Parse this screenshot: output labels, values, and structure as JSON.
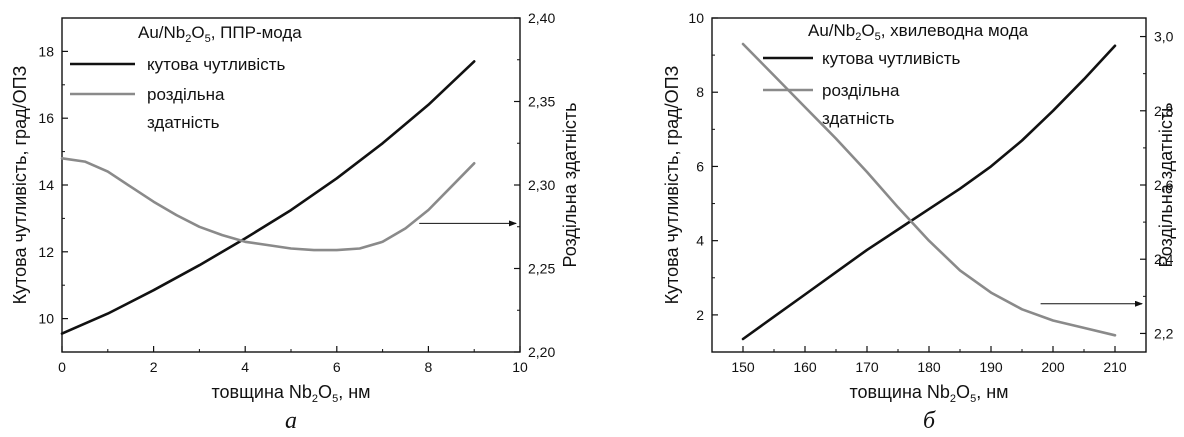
{
  "chart_data": [
    {
      "type": "line",
      "panel_label": "а",
      "legend_header": {
        "base": "Au/Nb",
        "sub1": "2",
        "o": "O",
        "sub2": "5",
        "suffix": ", ППР-мода"
      },
      "xlabel": {
        "prefix": "товщина ",
        "base": "Nb",
        "sub1": "2",
        "o": "O",
        "sub2": "5",
        "suffix": ", нм"
      },
      "ylabel_left": "Кутова чутливість, град/ОПЗ",
      "ylabel_right": "Роздільна здатність",
      "xlim": [
        0,
        10
      ],
      "ylim_left": [
        9,
        19
      ],
      "ylim_right": [
        2.2,
        2.4
      ],
      "xticks": [
        "0",
        "2",
        "4",
        "6",
        "8",
        "10"
      ],
      "yticks_left": [
        "10",
        "12",
        "14",
        "16",
        "18"
      ],
      "yticks_right": [
        "2,20",
        "2,25",
        "2,30",
        "2,35",
        "2,40"
      ],
      "series": [
        {
          "name": "кутова чутливість",
          "axis": "left",
          "color": "#111111",
          "x": [
            0,
            1,
            2,
            3,
            4,
            5,
            6,
            7,
            8,
            9
          ],
          "y": [
            9.55,
            10.15,
            10.85,
            11.6,
            12.4,
            13.25,
            14.2,
            15.25,
            16.4,
            17.7
          ]
        },
        {
          "name": "роздільна здатність",
          "axis": "right",
          "color": "#8a8a8a",
          "x": [
            0,
            0.5,
            1,
            1.5,
            2,
            2.5,
            3,
            3.5,
            4,
            4.5,
            5,
            5.5,
            6,
            6.5,
            7,
            7.5,
            8,
            8.5,
            9
          ],
          "y": [
            2.316,
            2.314,
            2.308,
            2.299,
            2.29,
            2.282,
            2.275,
            2.27,
            2.266,
            2.264,
            2.262,
            2.261,
            2.261,
            2.262,
            2.266,
            2.274,
            2.285,
            2.299,
            2.313
          ]
        }
      ],
      "arrow": {
        "x_start": 7.8,
        "x_end": 10,
        "y_right": 2.277
      }
    },
    {
      "type": "line",
      "panel_label": "б",
      "legend_header": {
        "base": "Au/Nb",
        "sub1": "2",
        "o": "O",
        "sub2": "5",
        "suffix": ",  хвилеводна мода"
      },
      "xlabel": {
        "prefix": "товщина ",
        "base": "Nb",
        "sub1": "2",
        "o": "O",
        "sub2": "5",
        "suffix": ", нм"
      },
      "ylabel_left": "Кутова чутливість, град/ОПЗ",
      "ylabel_right": "Роздільна здатність",
      "xlim": [
        145,
        215
      ],
      "ylim_left": [
        1,
        10
      ],
      "ylim_right": [
        2.15,
        3.05
      ],
      "xticks": [
        "150",
        "160",
        "170",
        "180",
        "190",
        "200",
        "210"
      ],
      "yticks_left": [
        "2",
        "4",
        "6",
        "8",
        "10"
      ],
      "yticks_right": [
        "2,2",
        "2,4",
        "2,6",
        "2,8",
        "3,0"
      ],
      "series": [
        {
          "name": "кутова чутливість",
          "axis": "left",
          "color": "#111111",
          "x": [
            150,
            155,
            160,
            165,
            170,
            175,
            180,
            185,
            190,
            195,
            200,
            205,
            210
          ],
          "y": [
            1.35,
            1.95,
            2.55,
            3.15,
            3.75,
            4.3,
            4.85,
            5.4,
            6.0,
            6.7,
            7.5,
            8.35,
            9.25
          ]
        },
        {
          "name": "роздільна здатність",
          "axis": "right",
          "color": "#8a8a8a",
          "x": [
            150,
            155,
            160,
            165,
            170,
            175,
            180,
            185,
            190,
            195,
            200,
            205,
            210
          ],
          "y": [
            2.98,
            2.895,
            2.81,
            2.725,
            2.635,
            2.54,
            2.45,
            2.37,
            2.31,
            2.265,
            2.235,
            2.215,
            2.195
          ]
        }
      ],
      "arrow": {
        "x_start": 198,
        "x_end": 215,
        "y_right": 2.28
      }
    }
  ]
}
